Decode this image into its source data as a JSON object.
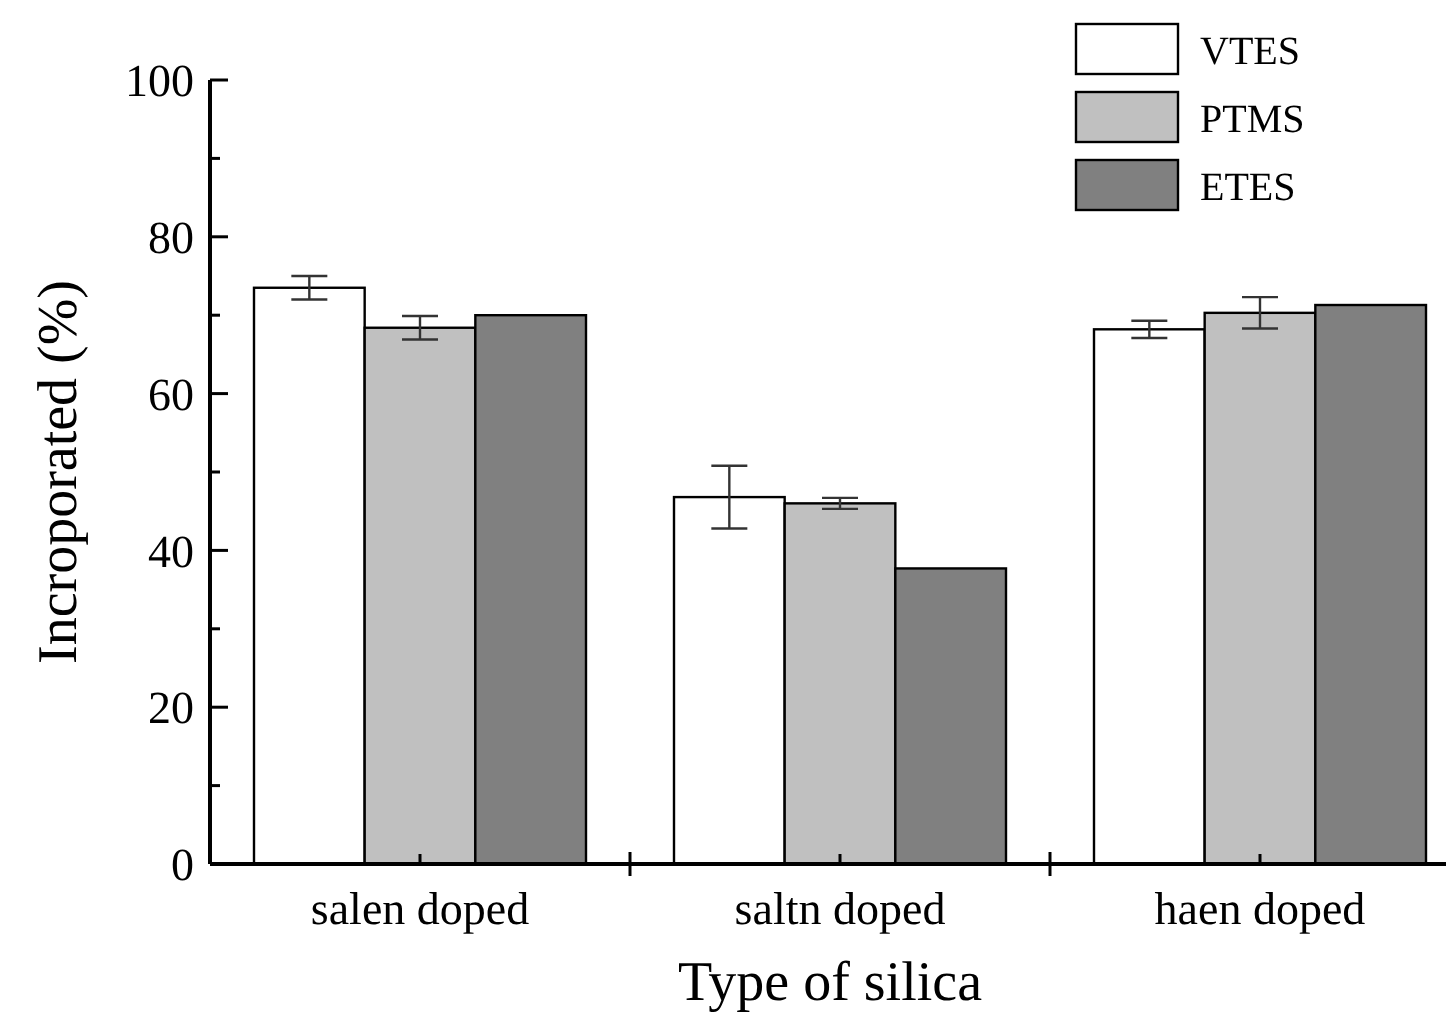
{
  "chart_data": {
    "type": "bar",
    "xlabel": "Type of silica",
    "ylabel": "Incroporated (%)",
    "categories": [
      "salen doped",
      "saltn doped",
      "haen doped"
    ],
    "series": [
      {
        "name": "VTES",
        "color": "#ffffff",
        "values": [
          73.5,
          46.8,
          68.2
        ],
        "errors": [
          1.5,
          4,
          1.1
        ]
      },
      {
        "name": "PTMS",
        "color": "#c0c0c0",
        "values": [
          68.4,
          46,
          70.3
        ],
        "errors": [
          1.5,
          0.7,
          2
        ]
      },
      {
        "name": "ETES",
        "color": "#808080",
        "values": [
          70,
          37.7,
          71.3
        ]
      }
    ],
    "ylim": [
      0,
      100
    ],
    "yticks": [
      0,
      {
        "value": 10,
        "label": null
      },
      20,
      {
        "value": 30,
        "label": null
      },
      40,
      {
        "value": 50,
        "label": null
      },
      60,
      {
        "value": 70,
        "label": null
      },
      80,
      {
        "value": 90,
        "label": null
      },
      100
    ],
    "legend": "top right"
  }
}
